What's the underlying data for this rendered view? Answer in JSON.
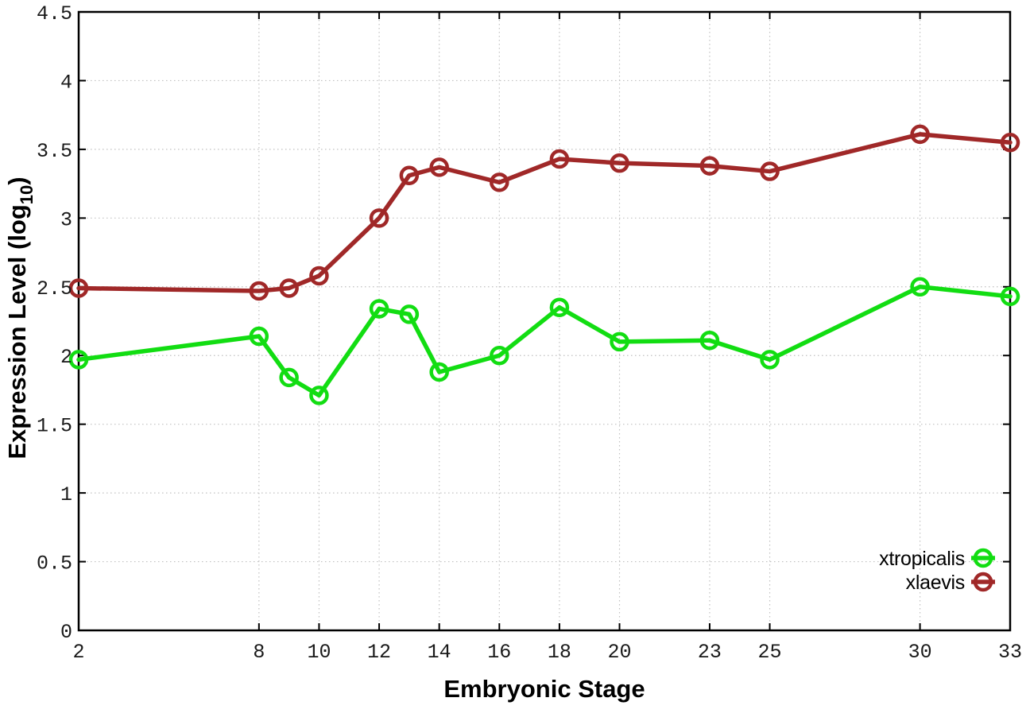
{
  "page": {
    "background": "#ffffff",
    "axis_color": "#000000",
    "grid_color": "#c0c0c0",
    "tick_label_color": "#1a1a1a"
  },
  "chart_data": {
    "type": "line",
    "title": "",
    "xlabel": "Embryonic Stage",
    "ylabel": "Expression Level (log10)",
    "xlim": [
      2,
      33
    ],
    "ylim": [
      0,
      4.5
    ],
    "grid": true,
    "x_tick_labels": [
      "2",
      "8",
      "10",
      "12",
      "14",
      "16",
      "18",
      "20",
      "23",
      "25",
      "30",
      "33"
    ],
    "y_tick_labels": [
      "0",
      "0.5",
      "1",
      "1.5",
      "2",
      "2.5",
      "3",
      "3.5",
      "4",
      "4.5"
    ],
    "marker_style": "open-circle",
    "legend_position": "inside-bottom-right",
    "x": [
      2,
      8,
      9,
      10,
      12,
      13,
      14,
      16,
      18,
      20,
      23,
      25,
      30,
      33
    ],
    "series": [
      {
        "name": "xtropicalis",
        "color": "#12dd12",
        "values": [
          1.97,
          2.14,
          1.84,
          1.71,
          2.34,
          2.3,
          1.88,
          2.0,
          2.35,
          2.1,
          2.11,
          1.97,
          2.5,
          2.43
        ]
      },
      {
        "name": "xlaevis",
        "color": "#a02828",
        "values": [
          2.49,
          2.47,
          2.49,
          2.58,
          3.0,
          3.31,
          3.37,
          3.26,
          3.43,
          3.4,
          3.38,
          3.34,
          3.61,
          3.55
        ]
      }
    ]
  }
}
